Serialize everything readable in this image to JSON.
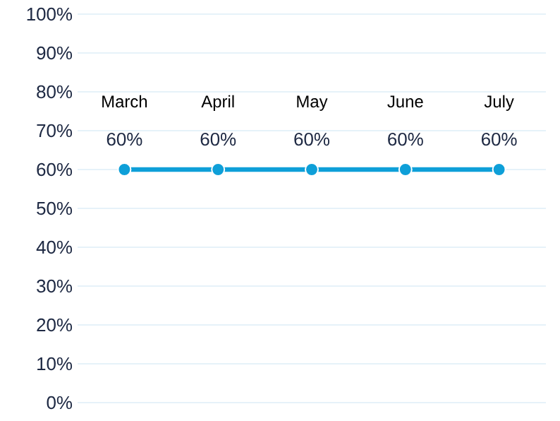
{
  "chart_data": {
    "type": "line",
    "categories": [
      "March",
      "April",
      "May",
      "June",
      "July"
    ],
    "values": [
      60,
      60,
      60,
      60,
      60
    ],
    "value_labels": [
      "60%",
      "60%",
      "60%",
      "60%",
      "60%"
    ],
    "color": "#0e9fd8",
    "marker": "circle",
    "line_style": "solid",
    "ylim": [
      0,
      100
    ],
    "yticks": [
      {
        "value": 0,
        "label": "0%"
      },
      {
        "value": 10,
        "label": "10%"
      },
      {
        "value": 20,
        "label": "20%"
      },
      {
        "value": 30,
        "label": "30%"
      },
      {
        "value": 40,
        "label": "40%"
      },
      {
        "value": 50,
        "label": "50%"
      },
      {
        "value": 60,
        "label": "60%"
      },
      {
        "value": 70,
        "label": "70%"
      },
      {
        "value": 80,
        "label": "80%"
      },
      {
        "value": 90,
        "label": "90%"
      },
      {
        "value": 100,
        "label": "100%"
      }
    ],
    "grid": "y"
  }
}
